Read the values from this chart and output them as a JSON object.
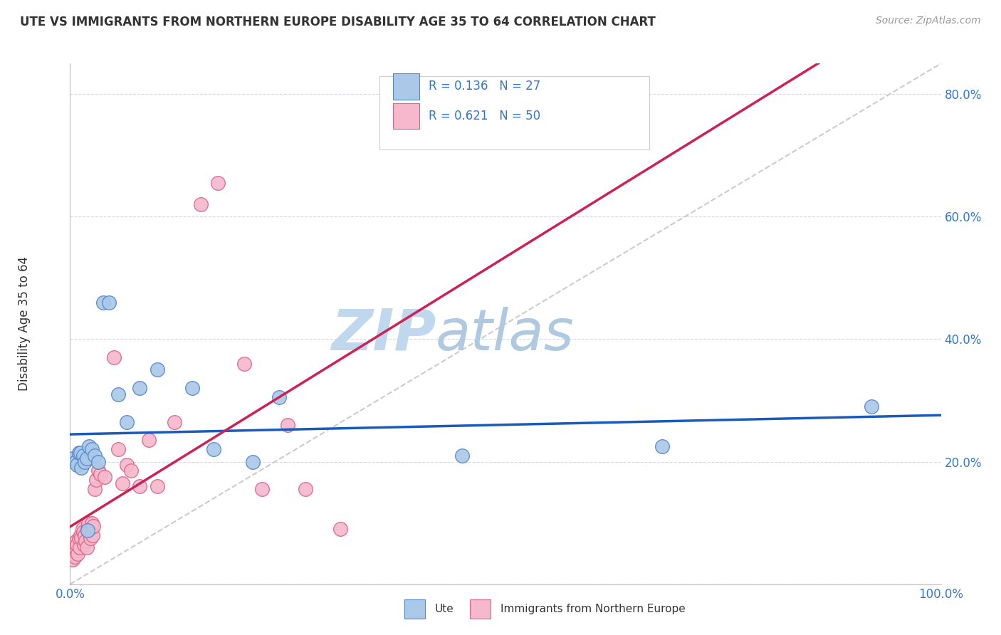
{
  "title": "UTE VS IMMIGRANTS FROM NORTHERN EUROPE DISABILITY AGE 35 TO 64 CORRELATION CHART",
  "source": "Source: ZipAtlas.com",
  "ylabel": "Disability Age 35 to 64",
  "xlim": [
    0.0,
    1.0
  ],
  "ylim": [
    0.0,
    0.85
  ],
  "yticks": [
    0.0,
    0.2,
    0.4,
    0.6,
    0.8
  ],
  "yticklabels": [
    "",
    "20.0%",
    "40.0%",
    "60.0%",
    "80.0%"
  ],
  "legend_r1": "R = 0.136",
  "legend_n1": "N = 27",
  "legend_r2": "R = 0.621",
  "legend_n2": "N = 50",
  "ute_color": "#aac8e8",
  "ute_edge_color": "#5588cc",
  "imm_color": "#f5b8cc",
  "imm_edge_color": "#dd6688",
  "trendline_ute_color": "#1a5aba",
  "trendline_imm_color": "#cc2255",
  "diagonal_color": "#cccccc",
  "watermark_zip_color": "#c0d8ee",
  "watermark_atlas_color": "#b0c8e0",
  "background_color": "#ffffff",
  "grid_color": "#d8d8e8",
  "ute_scatter_x": [
    0.003,
    0.006,
    0.008,
    0.01,
    0.012,
    0.013,
    0.015,
    0.017,
    0.019,
    0.02,
    0.022,
    0.025,
    0.028,
    0.032,
    0.038,
    0.045,
    0.055,
    0.065,
    0.08,
    0.1,
    0.14,
    0.165,
    0.21,
    0.24,
    0.45,
    0.68,
    0.92
  ],
  "ute_scatter_y": [
    0.205,
    0.2,
    0.195,
    0.215,
    0.215,
    0.19,
    0.21,
    0.2,
    0.205,
    0.088,
    0.225,
    0.22,
    0.21,
    0.2,
    0.46,
    0.46,
    0.31,
    0.265,
    0.32,
    0.35,
    0.32,
    0.22,
    0.2,
    0.305,
    0.21,
    0.225,
    0.29
  ],
  "imm_scatter_x": [
    0.001,
    0.002,
    0.003,
    0.004,
    0.004,
    0.005,
    0.006,
    0.007,
    0.007,
    0.008,
    0.009,
    0.01,
    0.011,
    0.012,
    0.013,
    0.014,
    0.015,
    0.016,
    0.017,
    0.018,
    0.019,
    0.02,
    0.021,
    0.022,
    0.023,
    0.024,
    0.025,
    0.026,
    0.027,
    0.028,
    0.03,
    0.032,
    0.035,
    0.04,
    0.05,
    0.055,
    0.06,
    0.065,
    0.07,
    0.08,
    0.09,
    0.1,
    0.12,
    0.15,
    0.17,
    0.2,
    0.22,
    0.25,
    0.27,
    0.31
  ],
  "imm_scatter_y": [
    0.05,
    0.055,
    0.04,
    0.06,
    0.05,
    0.045,
    0.06,
    0.055,
    0.07,
    0.065,
    0.05,
    0.075,
    0.06,
    0.08,
    0.075,
    0.09,
    0.085,
    0.065,
    0.08,
    0.07,
    0.06,
    0.09,
    0.1,
    0.085,
    0.075,
    0.09,
    0.1,
    0.08,
    0.095,
    0.155,
    0.17,
    0.185,
    0.18,
    0.175,
    0.37,
    0.22,
    0.165,
    0.195,
    0.185,
    0.16,
    0.235,
    0.16,
    0.265,
    0.62,
    0.655,
    0.36,
    0.155,
    0.26,
    0.155,
    0.09
  ]
}
